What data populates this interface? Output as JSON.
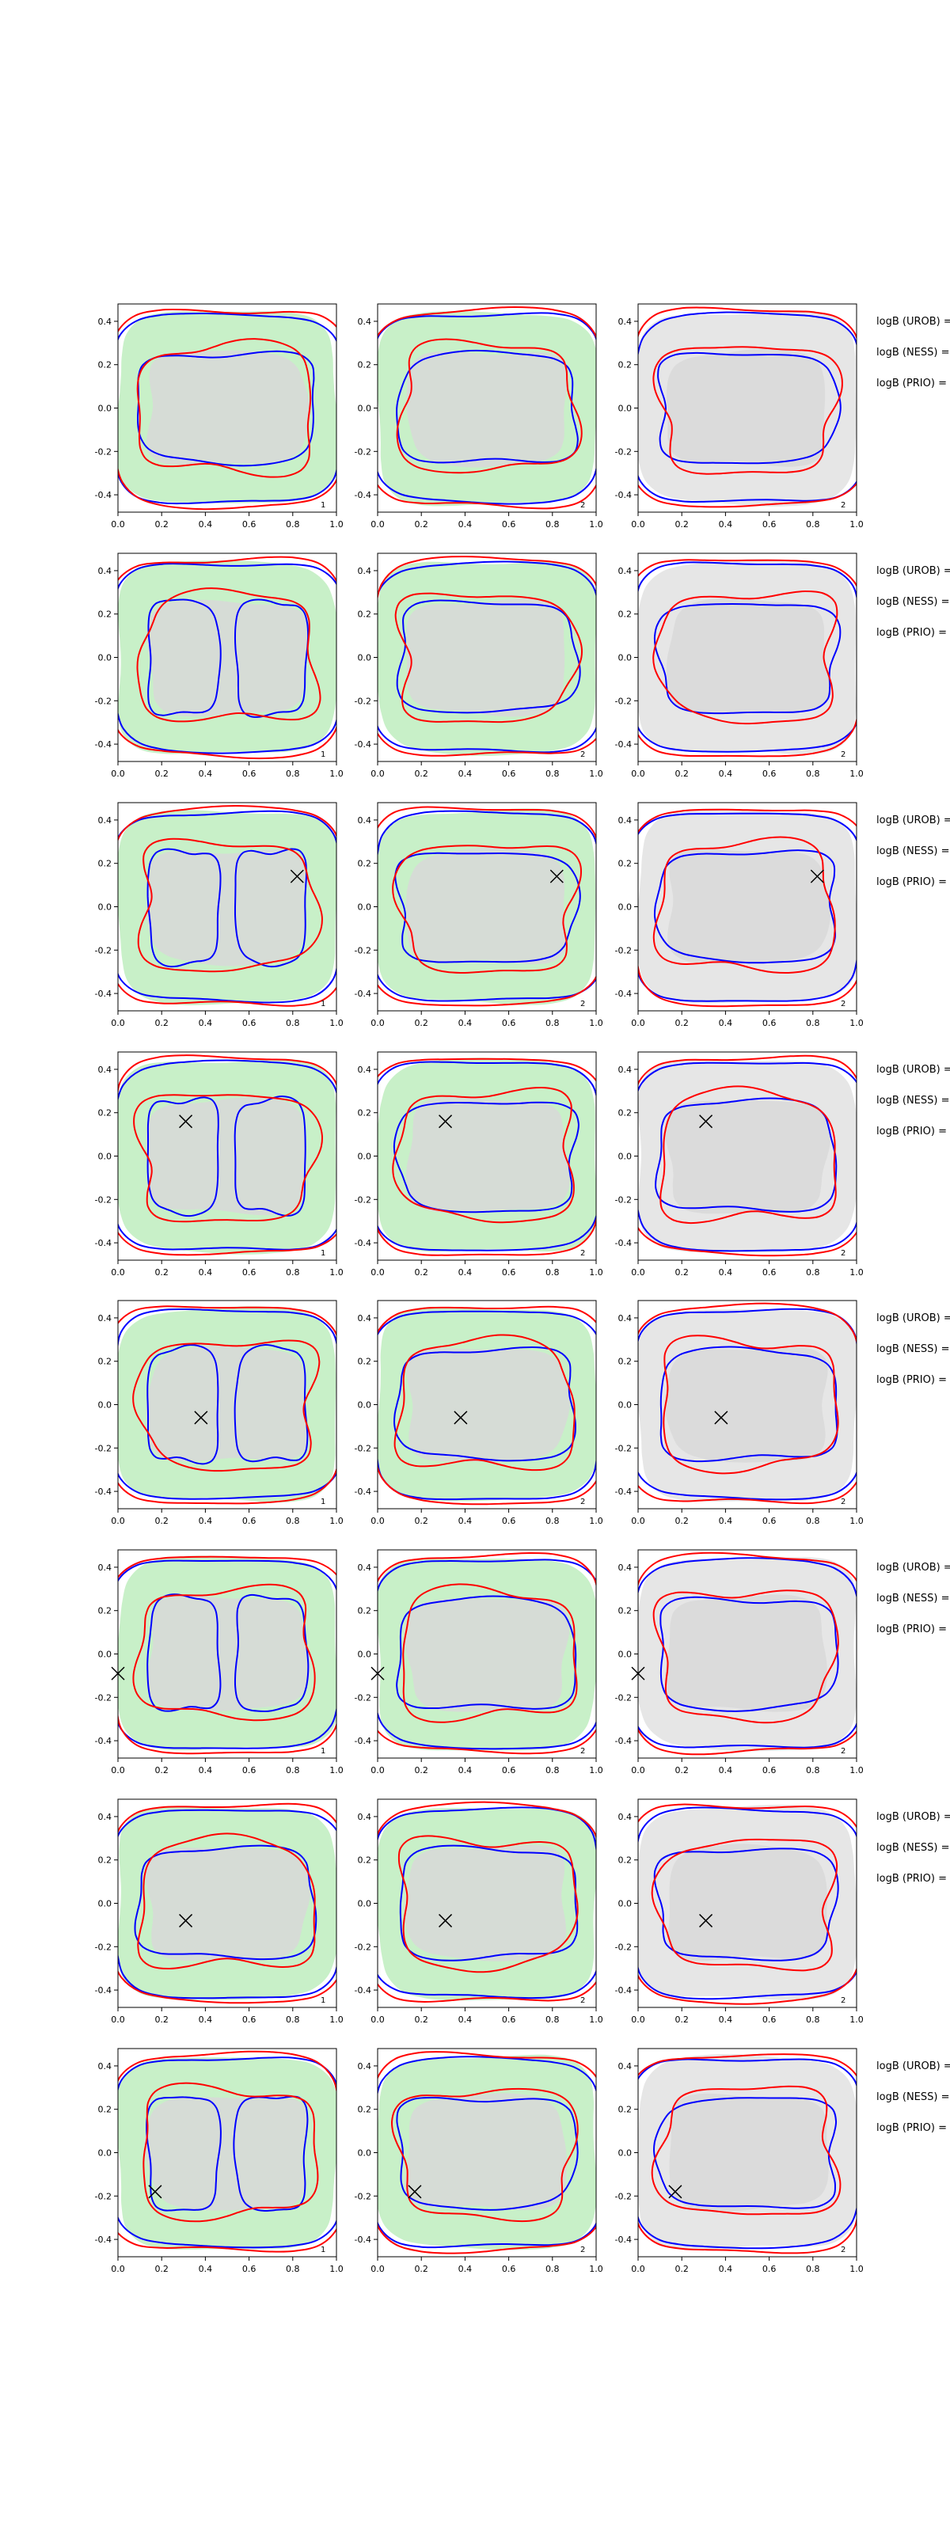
{
  "chart_data": {
    "type": "contour",
    "title": "",
    "xlabel": "",
    "ylabel": "",
    "xlim": [
      0.0,
      1.0
    ],
    "ylim": [
      -0.48,
      0.48
    ],
    "x_ticks": [
      "0.0",
      "0.2",
      "0.4",
      "0.6",
      "0.8",
      "1.0"
    ],
    "y_ticks": [
      "0.4",
      "0.2",
      "0.0",
      "-0.2",
      "-0.4"
    ],
    "series_colors": {
      "region_green": "#c8f0c8",
      "region_gray": "#d8d8d8",
      "contour_blue": "#0000ff",
      "contour_red": "#ff0000"
    },
    "columns": [
      {
        "panel_label": "1",
        "background": "green"
      },
      {
        "panel_label": "2",
        "background": "green"
      },
      {
        "panel_label": "2",
        "background": "gray"
      }
    ],
    "side_labels": [
      "logB (UROB) =",
      "logB (NESS) =",
      "logB (PRIO) ="
    ],
    "rows": [
      {
        "marker": null,
        "blue_shape": "butterfly",
        "red_shape": "butterfly"
      },
      {
        "marker": null,
        "blue_shape": "two-lobes",
        "red_shape": "two-lobes"
      },
      {
        "marker": [
          0.82,
          0.14
        ],
        "blue_shape": "two-lobes",
        "red_shape": "two-lobes"
      },
      {
        "marker": [
          0.31,
          0.16
        ],
        "blue_shape": "two-lobes",
        "red_shape": "wavy"
      },
      {
        "marker": [
          0.38,
          -0.06
        ],
        "blue_shape": "two-lobes",
        "red_shape": "two-lobes"
      },
      {
        "marker": [
          0.0,
          -0.09
        ],
        "blue_shape": "two-lobes",
        "red_shape": "two-lobes"
      },
      {
        "marker": [
          0.31,
          -0.08
        ],
        "blue_shape": "butterfly",
        "red_shape": "wavy"
      },
      {
        "marker": [
          0.17,
          -0.18
        ],
        "blue_shape": "two-lobes",
        "red_shape": "two-lobes"
      }
    ]
  }
}
